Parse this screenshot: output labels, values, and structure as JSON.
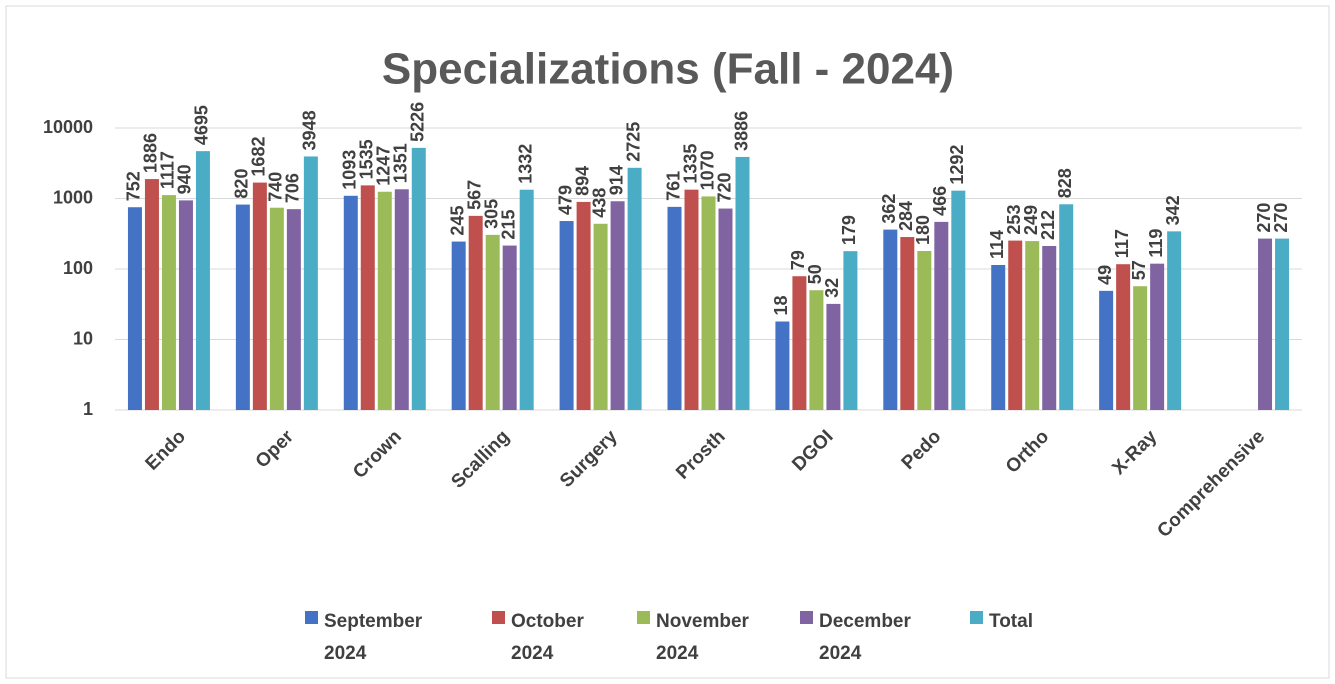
{
  "chart_data": {
    "type": "bar",
    "title": "Specializations (Fall - 2024)",
    "categories": [
      "Endo",
      "Oper",
      "Crown",
      "Scalling",
      "Surgery",
      "Prosth",
      "DGOI",
      "Pedo",
      "Ortho",
      "X-Ray",
      "Comprehensive"
    ],
    "series": [
      {
        "name": "September 2024",
        "color": "#4472c4",
        "values": [
          752,
          820,
          1093,
          245,
          479,
          761,
          18,
          362,
          114,
          49,
          null
        ]
      },
      {
        "name": "October 2024",
        "color": "#c0504d",
        "values": [
          1886,
          1682,
          1535,
          567,
          894,
          1335,
          79,
          284,
          253,
          117,
          null
        ]
      },
      {
        "name": "November 2024",
        "color": "#9bbb59",
        "values": [
          1117,
          740,
          1247,
          305,
          438,
          1070,
          50,
          180,
          249,
          57,
          null
        ]
      },
      {
        "name": "December 2024",
        "color": "#8064a2",
        "values": [
          940,
          706,
          1351,
          215,
          914,
          720,
          32,
          466,
          212,
          119,
          270
        ]
      },
      {
        "name": "Total",
        "color": "#4bacc6",
        "values": [
          4695,
          3948,
          5226,
          1332,
          2725,
          3886,
          179,
          1292,
          828,
          342,
          270
        ]
      }
    ],
    "ylim": [
      1,
      10000
    ],
    "yticks": [
      1,
      10,
      100,
      1000,
      10000
    ],
    "log_scale": true,
    "grid": true,
    "legend": "bottom"
  }
}
